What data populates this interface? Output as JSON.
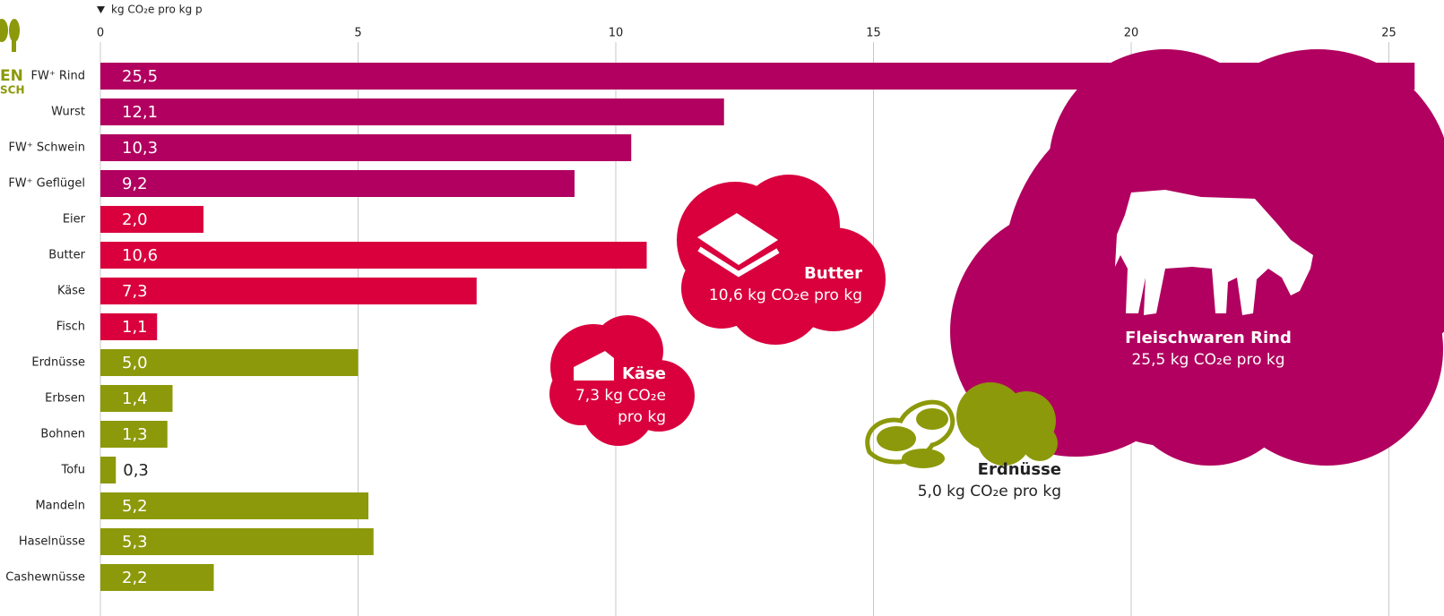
{
  "chart_data": {
    "type": "bar",
    "orientation": "horizontal",
    "axis_label": "kg CO₂e pro kg p",
    "logo_text": [
      "EN",
      "SCH"
    ],
    "categories": [
      "FW⁺ Rind",
      "Wurst",
      "FW⁺ Schwein",
      "FW⁺ Geflügel",
      "Eier",
      "Butter",
      "Käse",
      "Fisch",
      "Erdnüsse",
      "Erbsen",
      "Bohnen",
      "Tofu",
      "Mandeln",
      "Haselnüsse",
      "Cashewnüsse"
    ],
    "values": [
      25.5,
      12.1,
      10.3,
      9.2,
      2.0,
      10.6,
      7.3,
      1.1,
      5.0,
      1.4,
      1.3,
      0.3,
      5.2,
      5.3,
      2.2
    ],
    "value_labels": [
      "25,5",
      "12,1",
      "10,3",
      "9,2",
      "2,0",
      "10,6",
      "7,3",
      "1,1",
      "5,0",
      "1,4",
      "1,3",
      "0,3",
      "5,2",
      "5,3",
      "2,2"
    ],
    "bar_colors": [
      "#b1005f",
      "#b1005f",
      "#b1005f",
      "#b1005f",
      "#d9003d",
      "#d9003d",
      "#d9003d",
      "#d9003d",
      "#8c990a",
      "#8c990a",
      "#8c990a",
      "#8c990a",
      "#8c990a",
      "#8c990a",
      "#8c990a"
    ],
    "xlim": [
      0,
      26
    ],
    "xticks": [
      0,
      5,
      10,
      15,
      20,
      25
    ],
    "grid": true,
    "annotations": [
      {
        "title": "Fleischwaren Rind",
        "lines": [
          "25,5 kg CO₂e pro kg"
        ]
      },
      {
        "title": "Butter",
        "lines": [
          "10,6 kg CO₂e pro kg"
        ]
      },
      {
        "title": "Käse",
        "lines": [
          "7,3 kg CO₂e",
          "pro kg"
        ]
      },
      {
        "title": "Erdnüsse",
        "lines": [
          "5,0 kg CO₂e pro kg"
        ]
      }
    ]
  }
}
